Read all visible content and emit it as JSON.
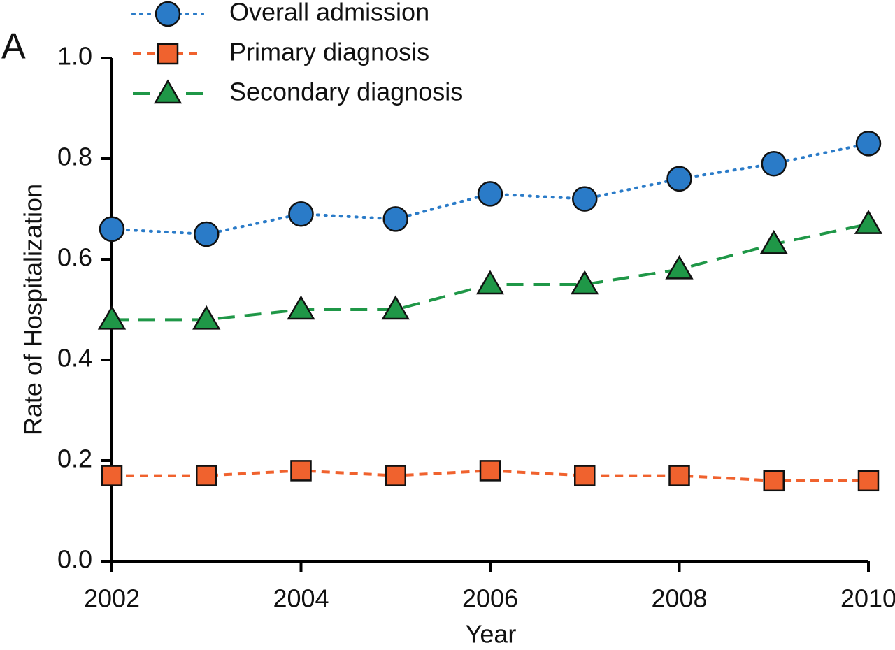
{
  "chart_data": {
    "type": "line",
    "panel_label": "A",
    "x_label": "Year",
    "y_label": "Rate of Hospitalization",
    "x": [
      2002,
      2003,
      2004,
      2005,
      2006,
      2007,
      2008,
      2009,
      2010
    ],
    "xlim": [
      2002,
      2010
    ],
    "xticks": [
      2002,
      2004,
      2006,
      2008,
      2010
    ],
    "ylim": [
      0,
      1
    ],
    "yticks": [
      {
        "value": 0,
        "label": "0.0"
      },
      0.2,
      0.4,
      0.6,
      0.8,
      {
        "value": 1,
        "label": "1.0"
      }
    ],
    "series": [
      {
        "name": "Overall admission",
        "color": "#2a7bc8",
        "marker": "circle",
        "dash": "dotted",
        "values": [
          0.66,
          0.65,
          0.69,
          0.68,
          0.73,
          0.72,
          0.76,
          0.79,
          0.83
        ]
      },
      {
        "name": "Primary diagnosis",
        "color": "#f0622e",
        "marker": "square",
        "dash": "dashed",
        "values": [
          0.17,
          0.17,
          0.18,
          0.17,
          0.18,
          0.17,
          0.17,
          0.16,
          0.16
        ]
      },
      {
        "name": "Secondary diagnosis",
        "color": "#1f9747",
        "marker": "triangle",
        "dash": "longdash",
        "values": [
          0.48,
          0.48,
          0.5,
          0.5,
          0.55,
          0.55,
          0.58,
          0.63,
          0.67
        ]
      }
    ]
  }
}
